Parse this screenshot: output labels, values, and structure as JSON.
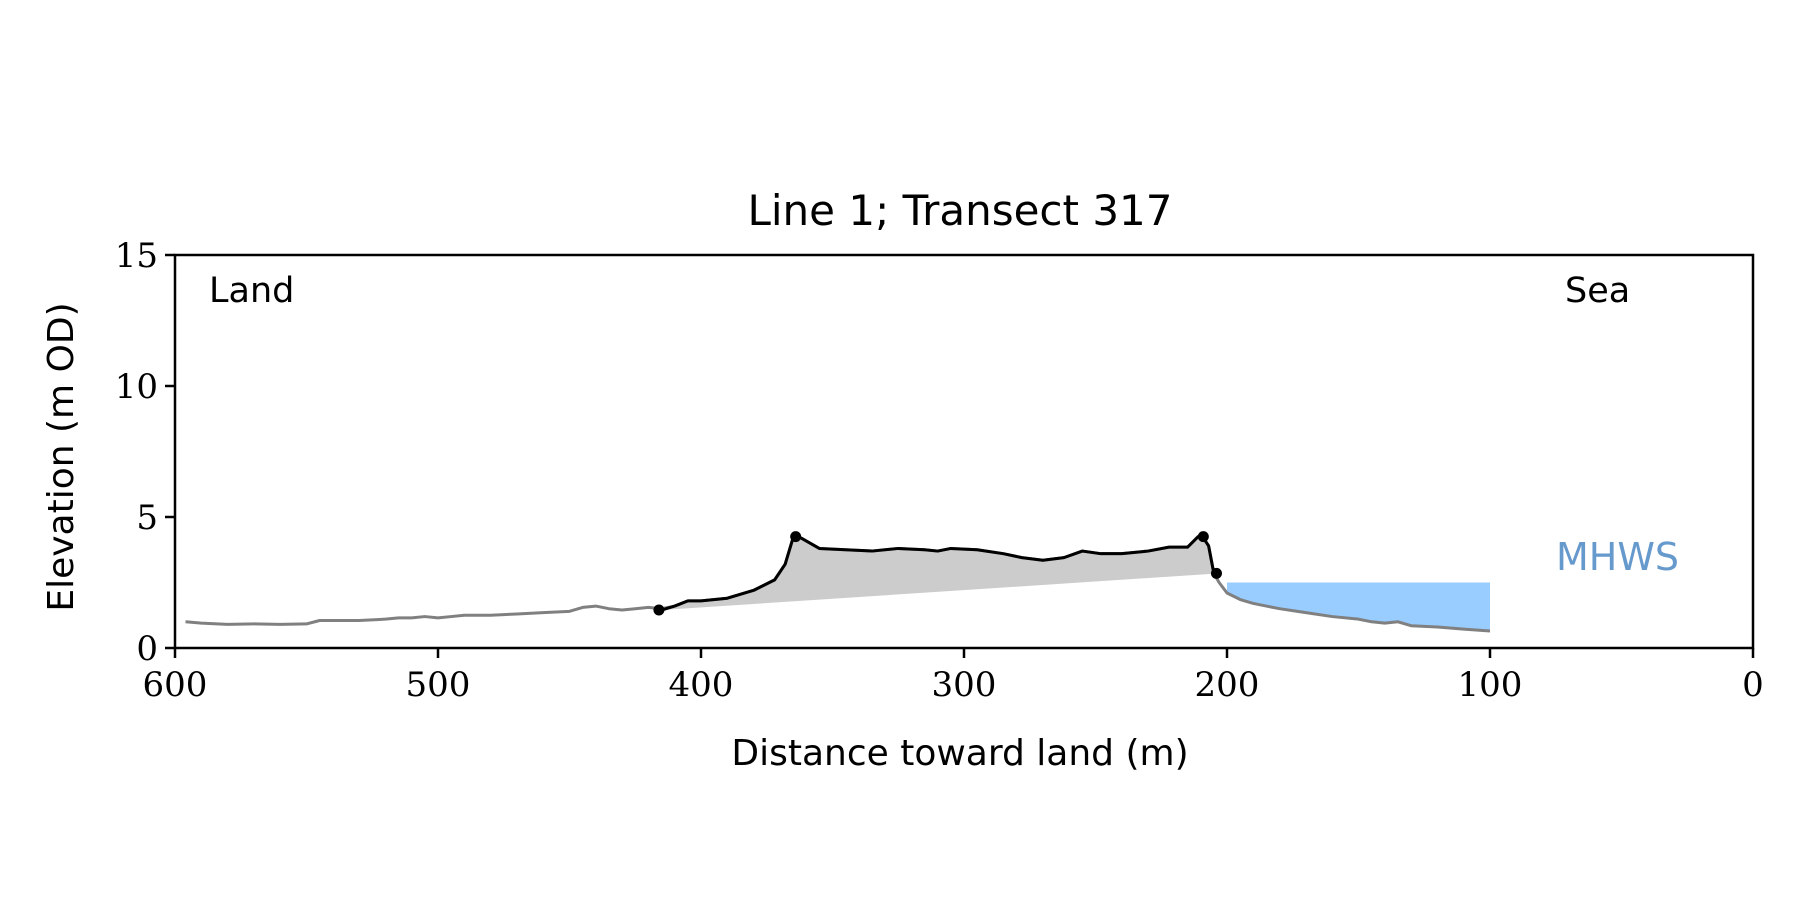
{
  "chart_data": {
    "type": "line",
    "title": "Line 1; Transect 317",
    "xlabel": "Distance toward land (m)",
    "ylabel": "Elevation (m OD)",
    "xlim": [
      600,
      0
    ],
    "ylim": [
      0,
      15
    ],
    "x_ticks": [
      "600",
      "500",
      "400",
      "300",
      "200",
      "100",
      "0"
    ],
    "y_ticks": [
      "15",
      "10",
      "5",
      "0"
    ],
    "grid": false,
    "legend": "none",
    "annotations": {
      "land": "Land",
      "sea": "Sea",
      "mhws": "MHWS"
    },
    "colors": {
      "profile": "#808080",
      "dune": "#000000",
      "dune_fill": "#cccccc",
      "water_fill": "#99ccff",
      "mhws_text": "#6699cc"
    },
    "mhws_level": 2.5,
    "water_x_range": [
      200,
      100
    ],
    "series": [
      {
        "role": "full-profile",
        "x": [
          596,
          590,
          580,
          570,
          560,
          550,
          545,
          540,
          530,
          520,
          515,
          510,
          505,
          500,
          495,
          490,
          480,
          470,
          460,
          450,
          445,
          440,
          435,
          430,
          425,
          420,
          415,
          410,
          405,
          400,
          390,
          380,
          372,
          368,
          365,
          362,
          355,
          345,
          335,
          325,
          315,
          310,
          305,
          295,
          285,
          278,
          270,
          262,
          255,
          248,
          240,
          230,
          222,
          215,
          211,
          209,
          207,
          205,
          203,
          200,
          195,
          190,
          180,
          170,
          160,
          150,
          145,
          140,
          135,
          130,
          120,
          110,
          100
        ],
        "y": [
          1.0,
          0.95,
          0.9,
          0.92,
          0.9,
          0.92,
          1.05,
          1.05,
          1.05,
          1.1,
          1.15,
          1.15,
          1.2,
          1.15,
          1.2,
          1.25,
          1.25,
          1.3,
          1.35,
          1.4,
          1.55,
          1.6,
          1.5,
          1.45,
          1.5,
          1.55,
          1.5,
          1.6,
          1.8,
          1.8,
          1.9,
          2.2,
          2.6,
          3.2,
          4.2,
          4.2,
          3.8,
          3.75,
          3.7,
          3.8,
          3.75,
          3.7,
          3.8,
          3.75,
          3.6,
          3.45,
          3.35,
          3.45,
          3.7,
          3.6,
          3.6,
          3.7,
          3.85,
          3.85,
          4.25,
          4.2,
          3.9,
          2.85,
          2.5,
          2.1,
          1.85,
          1.7,
          1.5,
          1.35,
          1.2,
          1.1,
          1.0,
          0.95,
          1.0,
          0.85,
          0.8,
          0.72,
          0.65
        ]
      },
      {
        "role": "dune",
        "x": [
          415,
          410,
          405,
          400,
          390,
          380,
          372,
          368,
          365,
          362,
          355,
          345,
          335,
          325,
          315,
          310,
          305,
          295,
          285,
          278,
          270,
          262,
          255,
          248,
          240,
          230,
          222,
          215,
          211,
          209,
          207,
          205,
          203
        ],
        "y": [
          1.45,
          1.6,
          1.8,
          1.8,
          1.9,
          2.2,
          2.6,
          3.2,
          4.2,
          4.2,
          3.8,
          3.75,
          3.7,
          3.8,
          3.75,
          3.7,
          3.8,
          3.75,
          3.6,
          3.45,
          3.35,
          3.45,
          3.7,
          3.6,
          3.6,
          3.7,
          3.85,
          3.85,
          4.25,
          4.2,
          3.9,
          2.85,
          2.85
        ]
      }
    ],
    "markers": [
      {
        "x": 416,
        "y": 1.45
      },
      {
        "x": 364,
        "y": 4.25
      },
      {
        "x": 209,
        "y": 4.25
      },
      {
        "x": 204,
        "y": 2.85
      }
    ]
  }
}
